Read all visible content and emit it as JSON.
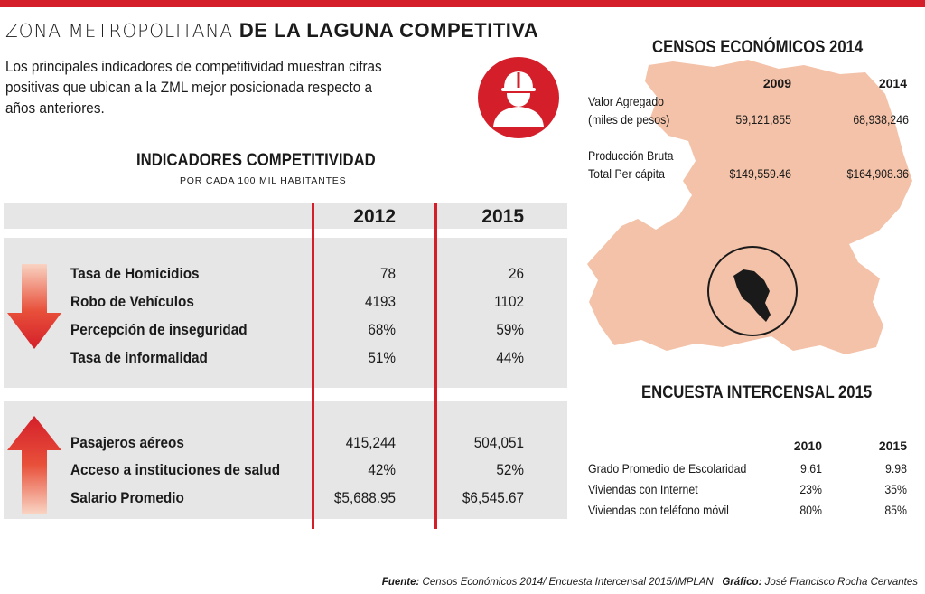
{
  "header": {
    "title_light": "ZONA METROPOLITANA",
    "title_bold": "DE LA LAGUNA COMPETITIVA",
    "intro": "Los principales indicadores de competitividad muestran cifras positivas que ubican a la ZML mejor posicionada respecto a años anteriores.",
    "accent_color": "#d41f2a"
  },
  "indicadores": {
    "title": "INDICADORES COMPETITIVIDAD",
    "subtitle": "POR CADA 100 MIL HABITANTES",
    "year_a": "2012",
    "year_b": "2015",
    "down_group": [
      {
        "label": "Tasa de Homicidios",
        "a": "78",
        "b": "26"
      },
      {
        "label": "Robo de Vehículos",
        "a": "4193",
        "b": "1102"
      },
      {
        "label": "Percepción de inseguridad",
        "a": "68%",
        "b": "59%"
      },
      {
        "label": "Tasa de informalidad",
        "a": "51%",
        "b": "44%"
      }
    ],
    "up_group": [
      {
        "label": "Pasajeros aéreos",
        "a": "415,244",
        "b": "504,051"
      },
      {
        "label": "Acceso a instituciones de salud",
        "a": "42%",
        "b": "52%"
      },
      {
        "label": "Salario Promedio",
        "a": "$5,688.95",
        "b": "$6,545.67"
      }
    ]
  },
  "censos": {
    "title": "CENSOS ECONÓMICOS 2014",
    "year_a": "2009",
    "year_b": "2014",
    "rows": [
      {
        "label1": "Valor Agregado",
        "label2": "(miles de pesos)",
        "a": "59,121,855",
        "b": "68,938,246"
      },
      {
        "label1": "Producción Bruta",
        "label2": "Total Per cápita",
        "a": "$149,559.46",
        "b": "$164,908.36"
      }
    ]
  },
  "encuesta": {
    "title": "ENCUESTA INTERCENSAL 2015",
    "year_a": "2010",
    "year_b": "2015",
    "rows": [
      {
        "label": "Grado Promedio de Escolaridad",
        "a": "9.61",
        "b": "9.98"
      },
      {
        "label": "Viviendas con Internet",
        "a": "23%",
        "b": "35%"
      },
      {
        "label": "Viviendas con teléfono móvil",
        "a": "80%",
        "b": "85%"
      }
    ]
  },
  "footer": {
    "fuente_label": "Fuente:",
    "fuente": "Censos Económicos 2014/ Encuesta Intercensal 2015/IMPLAN",
    "grafico_label": "Gráfico:",
    "grafico": "José Francisco Rocha Cervantes"
  },
  "icons": {
    "worker": "worker-helmet-icon",
    "arrow_down": "arrow-down-icon",
    "arrow_up": "arrow-up-icon",
    "map": "region-map"
  }
}
